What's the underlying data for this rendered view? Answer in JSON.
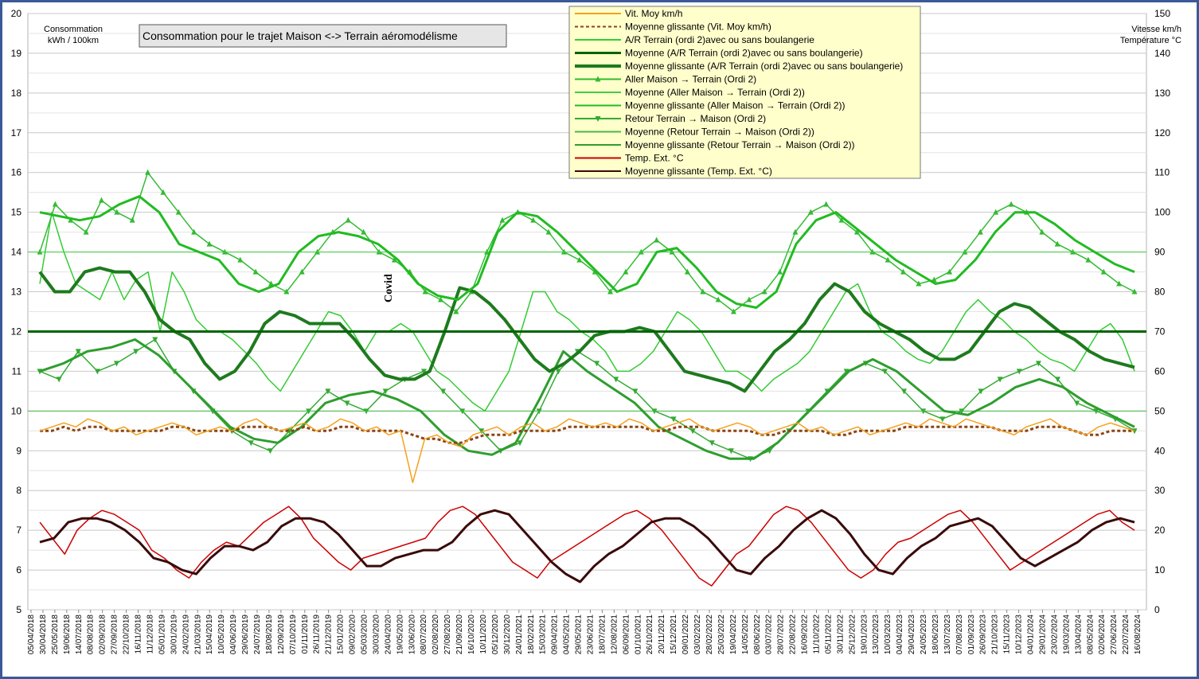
{
  "chart_data": {
    "type": "line",
    "title": "Consommation pour le trajet Maison <-> Terrain aéromodélisme",
    "ylabel_left": [
      "Consommation",
      "kWh / 100km"
    ],
    "ylabel_right": [
      "Vitesse km/h",
      "Température °C"
    ],
    "annotation": "Covid",
    "grid": true,
    "legend_position": "top-center",
    "ylim_left": [
      5,
      20
    ],
    "ylim_right": [
      0,
      150
    ],
    "yticks_left": [
      "5",
      "6",
      "7",
      "8",
      "9",
      "10",
      "11",
      "12",
      "13",
      "14",
      "15",
      "16",
      "17",
      "18",
      "19",
      "20"
    ],
    "yticks_right": [
      "0",
      "10",
      "20",
      "30",
      "40",
      "50",
      "60",
      "70",
      "80",
      "90",
      "100",
      "110",
      "120",
      "130",
      "140",
      "150"
    ],
    "xticks": [
      "05/04/2018",
      "30/04/2018",
      "25/05/2018",
      "19/06/2018",
      "14/07/2018",
      "08/08/2018",
      "02/09/2018",
      "27/09/2018",
      "22/10/2018",
      "16/11/2018",
      "11/12/2018",
      "05/01/2019",
      "30/01/2019",
      "24/02/2019",
      "21/03/2019",
      "15/04/2019",
      "10/05/2019",
      "04/06/2019",
      "29/06/2019",
      "24/07/2019",
      "18/08/2019",
      "12/09/2019",
      "07/10/2019",
      "01/11/2019",
      "26/11/2019",
      "21/12/2019",
      "15/01/2020",
      "09/02/2020",
      "05/03/2020",
      "30/03/2020",
      "24/04/2020",
      "19/05/2020",
      "13/06/2020",
      "08/07/2020",
      "02/08/2020",
      "27/08/2020",
      "21/09/2020",
      "16/10/2020",
      "10/11/2020",
      "05/12/2020",
      "30/12/2020",
      "24/01/2021",
      "18/02/2021",
      "15/03/2021",
      "09/04/2021",
      "04/05/2021",
      "29/05/2021",
      "23/06/2021",
      "18/07/2021",
      "12/08/2021",
      "06/09/2021",
      "01/10/2021",
      "26/10/2021",
      "20/11/2021",
      "15/12/2021",
      "09/01/2022",
      "03/02/2022",
      "28/02/2022",
      "25/03/2022",
      "19/04/2022",
      "14/05/2022",
      "08/06/2022",
      "03/07/2022",
      "28/07/2022",
      "22/08/2022",
      "16/09/2022",
      "11/10/2022",
      "05/11/2022",
      "30/11/2022",
      "25/12/2022",
      "19/01/2023",
      "13/02/2023",
      "10/03/2023",
      "04/04/2023",
      "29/04/2023",
      "24/05/2023",
      "18/06/2023",
      "13/07/2023",
      "07/08/2023",
      "01/09/2023",
      "26/09/2023",
      "21/10/2023",
      "15/11/2023",
      "10/12/2023",
      "04/01/2024",
      "29/01/2024",
      "23/02/2024",
      "19/03/2024",
      "13/04/2024",
      "08/05/2024",
      "02/06/2024",
      "27/06/2024",
      "22/07/2024",
      "16/08/2024"
    ],
    "x_start": "05/04/2018",
    "x_end": "25/08/2024",
    "reference_line": {
      "axis": "left",
      "value": 12,
      "color": "#006400"
    },
    "series": [
      {
        "name": "Vit. Moy km/h",
        "axis": "right",
        "color": "#f5a01a",
        "style": "solid",
        "values": [
          45,
          46,
          47,
          46,
          48,
          47,
          45,
          46,
          44,
          45,
          46,
          47,
          46,
          44,
          45,
          46,
          45,
          47,
          48,
          46,
          45,
          46,
          47,
          45,
          46,
          48,
          47,
          45,
          46,
          44,
          45,
          32,
          43,
          44,
          42,
          41,
          44,
          45,
          46,
          44,
          46,
          47,
          45,
          46,
          48,
          47,
          46,
          47,
          46,
          48,
          47,
          45,
          46,
          47,
          48,
          46,
          45,
          46,
          47,
          46,
          44,
          45,
          46,
          47,
          45,
          46,
          44,
          45,
          46,
          44,
          45,
          46,
          47,
          46,
          48,
          47,
          46,
          48,
          47,
          46,
          45,
          44,
          46,
          47,
          48,
          46,
          45,
          44,
          46,
          47,
          46,
          45
        ]
      },
      {
        "name": "Moyenne glissante (Vit. Moy km/h)",
        "axis": "right",
        "color": "#8b4513",
        "style": "dashed",
        "values": [
          45,
          45,
          46,
          45,
          46,
          46,
          45,
          45,
          45,
          45,
          45,
          46,
          46,
          45,
          45,
          45,
          45,
          46,
          46,
          46,
          45,
          45,
          46,
          45,
          45,
          46,
          46,
          45,
          45,
          45,
          45,
          44,
          43,
          43,
          42,
          42,
          43,
          44,
          44,
          44,
          45,
          45,
          45,
          45,
          46,
          46,
          46,
          46,
          46,
          46,
          46,
          45,
          45,
          46,
          46,
          46,
          45,
          45,
          45,
          45,
          44,
          44,
          45,
          45,
          45,
          45,
          44,
          44,
          45,
          45,
          45,
          45,
          46,
          46,
          46,
          46,
          46,
          46,
          46,
          46,
          45,
          45,
          45,
          46,
          46,
          46,
          45,
          44,
          44,
          45,
          45,
          45
        ]
      },
      {
        "name": "A/R Terrain (ordi 2)avec ou sans boulangerie",
        "axis": "left",
        "color": "#33cc33",
        "style": "solid",
        "values": [
          13.2,
          15.0,
          14.0,
          13.2,
          13.0,
          12.8,
          13.5,
          12.8,
          13.3,
          13.5,
          12.0,
          13.5,
          13.0,
          12.3,
          12.0,
          12.0,
          11.8,
          11.5,
          11.2,
          10.8,
          10.5,
          11.0,
          11.5,
          12.0,
          12.5,
          12.4,
          12.0,
          11.5,
          12.0,
          12.0,
          12.2,
          12.0,
          11.5,
          11.0,
          10.8,
          10.5,
          10.2,
          10.0,
          10.5,
          11.0,
          12.0,
          13.0,
          13.0,
          12.5,
          12.3,
          12.0,
          11.8,
          11.5,
          11.0,
          11.0,
          11.2,
          11.5,
          12.0,
          12.5,
          12.3,
          12.0,
          11.5,
          11.0,
          11.0,
          10.8,
          10.5,
          10.8,
          11.0,
          11.2,
          11.5,
          12.0,
          12.5,
          13.0,
          13.2,
          12.5,
          12.0,
          11.8,
          11.5,
          11.3,
          11.2,
          11.5,
          12.0,
          12.5,
          12.8,
          12.5,
          12.3,
          12.0,
          11.8,
          11.5,
          11.3,
          11.2,
          11.0,
          11.5,
          12.0,
          12.2,
          11.8,
          11.0
        ]
      },
      {
        "name": "Moyenne (A/R Terrain (ordi 2)avec ou sans boulangerie)",
        "axis": "left",
        "color": "#006400",
        "style": "solid",
        "values": [
          12
        ]
      },
      {
        "name": "Moyenne glissante (A/R Terrain (ordi 2)avec ou sans boulangerie)",
        "axis": "left",
        "color": "#1e7a1e",
        "style": "solid",
        "values": [
          13.5,
          13.0,
          13.0,
          13.5,
          13.6,
          13.5,
          13.5,
          13.0,
          12.3,
          12.0,
          11.8,
          11.2,
          10.8,
          11.0,
          11.5,
          12.2,
          12.5,
          12.4,
          12.2,
          12.2,
          12.2,
          11.8,
          11.3,
          10.9,
          10.8,
          10.8,
          11.0,
          12.0,
          13.1,
          13.0,
          12.7,
          12.3,
          11.8,
          11.3,
          11.0,
          11.2,
          11.5,
          11.9,
          12.0,
          12.0,
          12.1,
          12.0,
          11.5,
          11.0,
          10.9,
          10.8,
          10.7,
          10.5,
          11.0,
          11.5,
          11.8,
          12.2,
          12.8,
          13.2,
          13.0,
          12.5,
          12.2,
          12.0,
          11.8,
          11.5,
          11.3,
          11.3,
          11.5,
          12.0,
          12.5,
          12.7,
          12.6,
          12.3,
          12.0,
          11.8,
          11.5,
          11.3,
          11.2,
          11.1
        ]
      },
      {
        "name": "Aller Maison → Terrain (Ordi 2)",
        "axis": "left",
        "color": "#33bb33",
        "style": "triangle-up",
        "values": [
          14.0,
          15.2,
          14.8,
          14.5,
          15.3,
          15.0,
          14.8,
          16.0,
          15.5,
          15.0,
          14.5,
          14.2,
          14.0,
          13.8,
          13.5,
          13.2,
          13.0,
          13.5,
          14.0,
          14.5,
          14.8,
          14.5,
          14.0,
          13.8,
          13.5,
          13.0,
          12.8,
          12.5,
          13.0,
          14.0,
          14.8,
          15.0,
          14.8,
          14.5,
          14.0,
          13.8,
          13.5,
          13.0,
          13.5,
          14.0,
          14.3,
          14.0,
          13.5,
          13.0,
          12.8,
          12.5,
          12.8,
          13.0,
          13.5,
          14.5,
          15.0,
          15.2,
          14.8,
          14.5,
          14.0,
          13.8,
          13.5,
          13.2,
          13.3,
          13.5,
          14.0,
          14.5,
          15.0,
          15.2,
          15.0,
          14.5,
          14.2,
          14.0,
          13.8,
          13.5,
          13.2,
          13.0
        ]
      },
      {
        "name": "Moyenne (Aller Maison → Terrain (Ordi 2))",
        "axis": "left",
        "color": "#44cc44",
        "style": "solid",
        "values": [
          14.0
        ]
      },
      {
        "name": "Moyenne glissante (Aller Maison → Terrain (Ordi 2))",
        "axis": "left",
        "color": "#22bb22",
        "style": "solid",
        "values": [
          15.0,
          14.9,
          14.8,
          14.9,
          15.2,
          15.4,
          15.0,
          14.2,
          14.0,
          13.8,
          13.2,
          13.0,
          13.2,
          14.0,
          14.4,
          14.5,
          14.4,
          14.2,
          13.8,
          13.2,
          12.9,
          12.8,
          13.2,
          14.5,
          15.0,
          14.9,
          14.5,
          14.0,
          13.5,
          13.0,
          13.2,
          14.0,
          14.1,
          13.6,
          13.0,
          12.7,
          12.6,
          13.0,
          14.2,
          14.8,
          15.0,
          14.6,
          14.2,
          13.8,
          13.5,
          13.2,
          13.3,
          13.8,
          14.5,
          15.0,
          15.0,
          14.7,
          14.3,
          14.0,
          13.7,
          13.5
        ]
      },
      {
        "name": "Retour Terrain → Maison (Ordi 2)",
        "axis": "left",
        "color": "#33aa33",
        "style": "triangle-down",
        "values": [
          11.0,
          10.8,
          11.5,
          11.0,
          11.2,
          11.5,
          11.8,
          11.0,
          10.5,
          10.0,
          9.5,
          9.2,
          9.0,
          9.5,
          10.0,
          10.5,
          10.2,
          10.0,
          10.5,
          10.8,
          11.0,
          10.5,
          10.0,
          9.5,
          9.0,
          9.2,
          10.0,
          11.0,
          11.5,
          11.2,
          10.8,
          10.5,
          10.0,
          9.8,
          9.5,
          9.2,
          9.0,
          8.8,
          9.0,
          9.5,
          10.0,
          10.5,
          11.0,
          11.2,
          11.0,
          10.5,
          10.0,
          9.8,
          10.0,
          10.5,
          10.8,
          11.0,
          11.2,
          10.8,
          10.2,
          10.0,
          9.8,
          9.5
        ]
      },
      {
        "name": "Moyenne (Retour Terrain → Maison (Ordi 2))",
        "axis": "left",
        "color": "#44bb44",
        "style": "solid",
        "values": [
          10.0
        ]
      },
      {
        "name": "Moyenne glissante (Retour Terrain → Maison (Ordi 2))",
        "axis": "left",
        "color": "#2e9e2e",
        "style": "solid",
        "values": [
          11.0,
          11.2,
          11.5,
          11.6,
          11.8,
          11.4,
          10.8,
          10.2,
          9.6,
          9.3,
          9.2,
          9.6,
          10.2,
          10.4,
          10.5,
          10.3,
          10.0,
          9.4,
          9.0,
          8.9,
          9.2,
          10.3,
          11.5,
          11.0,
          10.6,
          10.2,
          9.6,
          9.3,
          9.0,
          8.8,
          8.8,
          9.2,
          9.8,
          10.4,
          11.0,
          11.3,
          11.0,
          10.5,
          10.0,
          9.9,
          10.2,
          10.6,
          10.8,
          10.6,
          10.2,
          9.9,
          9.6
        ]
      },
      {
        "name": "Temp. Ext. °C",
        "axis": "right",
        "color": "#cc0000",
        "style": "solid",
        "values": [
          22,
          18,
          14,
          20,
          23,
          25,
          24,
          22,
          20,
          15,
          13,
          10,
          8,
          12,
          15,
          17,
          16,
          19,
          22,
          24,
          26,
          23,
          18,
          15,
          12,
          10,
          13,
          14,
          15,
          16,
          17,
          18,
          22,
          25,
          26,
          24,
          20,
          16,
          12,
          10,
          8,
          12,
          14,
          16,
          18,
          20,
          22,
          24,
          25,
          23,
          20,
          16,
          12,
          8,
          6,
          10,
          14,
          16,
          20,
          24,
          26,
          25,
          22,
          18,
          14,
          10,
          8,
          10,
          14,
          17,
          18,
          20,
          22,
          24,
          25,
          22,
          18,
          14,
          10,
          12,
          14,
          16,
          18,
          20,
          22,
          24,
          25,
          22,
          20
        ]
      },
      {
        "name": "Moyenne glissante (Temp. Ext. °C)",
        "axis": "right",
        "color": "#3a0a0a",
        "style": "solid",
        "values": [
          17,
          18,
          22,
          23,
          23,
          22,
          20,
          17,
          13,
          12,
          10,
          9,
          13,
          16,
          16,
          15,
          17,
          21,
          23,
          23,
          22,
          19,
          15,
          11,
          11,
          13,
          14,
          15,
          15,
          17,
          21,
          24,
          25,
          24,
          20,
          16,
          12,
          9,
          7,
          11,
          14,
          16,
          19,
          22,
          23,
          23,
          21,
          18,
          14,
          10,
          9,
          13,
          16,
          20,
          23,
          25,
          23,
          19,
          14,
          10,
          9,
          13,
          16,
          18,
          21,
          22,
          23,
          21,
          17,
          13,
          11,
          13,
          15,
          17,
          20,
          22,
          23,
          22
        ]
      }
    ]
  }
}
